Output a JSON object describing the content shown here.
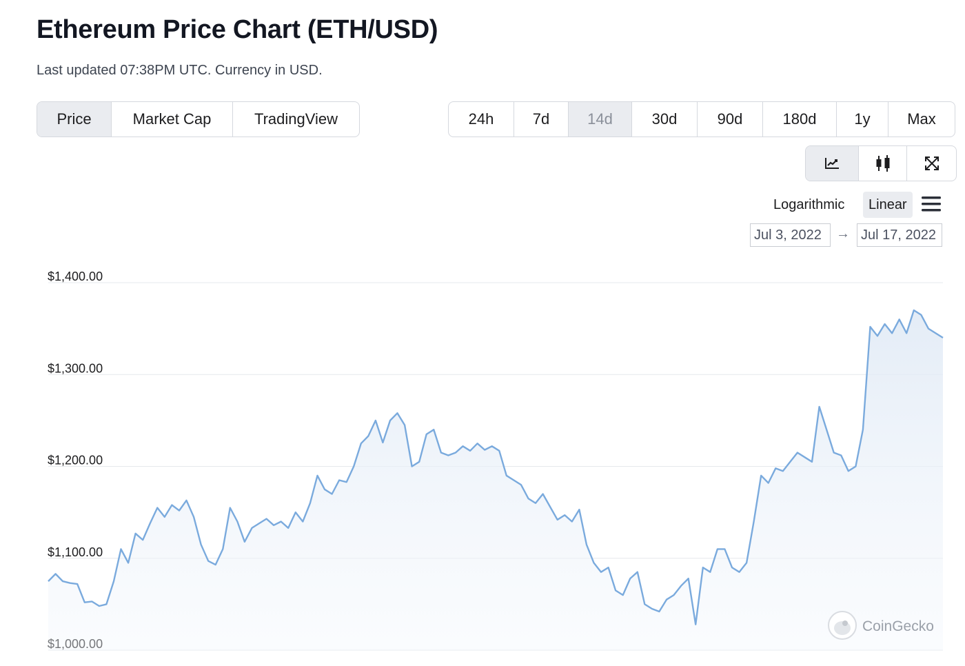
{
  "header": {
    "title": "Ethereum Price Chart (ETH/USD)",
    "subtitle": "Last updated 07:38PM UTC. Currency in USD."
  },
  "view_tabs": [
    {
      "label": "Price",
      "active": true
    },
    {
      "label": "Market Cap",
      "active": false
    },
    {
      "label": "TradingView",
      "active": false
    }
  ],
  "range_tabs": [
    {
      "label": "24h",
      "active": false
    },
    {
      "label": "7d",
      "active": false
    },
    {
      "label": "14d",
      "active": true
    },
    {
      "label": "30d",
      "active": false
    },
    {
      "label": "90d",
      "active": false
    },
    {
      "label": "180d",
      "active": false
    },
    {
      "label": "1y",
      "active": false
    },
    {
      "label": "Max",
      "active": false
    }
  ],
  "chart_type_buttons": [
    {
      "icon": "line-chart-icon",
      "active": true
    },
    {
      "icon": "candlestick-icon",
      "active": false
    },
    {
      "icon": "fullscreen-icon",
      "active": false
    }
  ],
  "scale_options": {
    "log_label": "Logarithmic",
    "linear_label": "Linear",
    "selected": "Linear"
  },
  "date_range": {
    "from": "Jul 3, 2022",
    "to": "Jul 17, 2022"
  },
  "watermark": "CoinGecko",
  "colors": {
    "line": "#7aaadd",
    "fill_top": "#dfe9f5",
    "grid": "#e6e8ec",
    "active_button": "#eaecf0",
    "text": "#1c1c1e"
  },
  "chart_data": {
    "type": "area",
    "title": "",
    "xlabel": "",
    "ylabel": "",
    "ylim": [
      1000,
      1400
    ],
    "ytick_labels": [
      "$1,400.00",
      "$1,300.00",
      "$1,200.00",
      "$1,100.00",
      "$1,000.00"
    ],
    "yticks": [
      1400,
      1300,
      1200,
      1100,
      1000
    ],
    "grid": true,
    "x_start": "Jul 3, 2022",
    "x_end": "Jul 17, 2022",
    "series": [
      {
        "values": [
          1075,
          1083,
          1075,
          1073,
          1072,
          1052,
          1053,
          1048,
          1050,
          1075,
          1110,
          1095,
          1127,
          1120,
          1138,
          1155,
          1145,
          1158,
          1152,
          1163,
          1145,
          1115,
          1097,
          1093,
          1110,
          1155,
          1140,
          1118,
          1133,
          1138,
          1143,
          1136,
          1140,
          1133,
          1150,
          1140,
          1160,
          1190,
          1175,
          1170,
          1185,
          1183,
          1200,
          1225,
          1233,
          1250,
          1226,
          1250,
          1258,
          1245,
          1200,
          1205,
          1235,
          1240,
          1215,
          1212,
          1215,
          1222,
          1217,
          1225,
          1218,
          1222,
          1217,
          1190,
          1185,
          1180,
          1165,
          1160,
          1170,
          1156,
          1142,
          1147,
          1140,
          1153,
          1115,
          1095,
          1085,
          1090,
          1065,
          1060,
          1078,
          1085,
          1050,
          1045,
          1042,
          1055,
          1060,
          1070,
          1078,
          1028,
          1090,
          1085,
          1110,
          1110,
          1090,
          1085,
          1095,
          1140,
          1190,
          1182,
          1198,
          1195,
          1205,
          1215,
          1210,
          1205,
          1265,
          1240,
          1215,
          1212,
          1195,
          1200,
          1240,
          1352,
          1342,
          1355,
          1345,
          1360,
          1345,
          1370,
          1365,
          1350,
          1345,
          1340
        ]
      }
    ]
  }
}
